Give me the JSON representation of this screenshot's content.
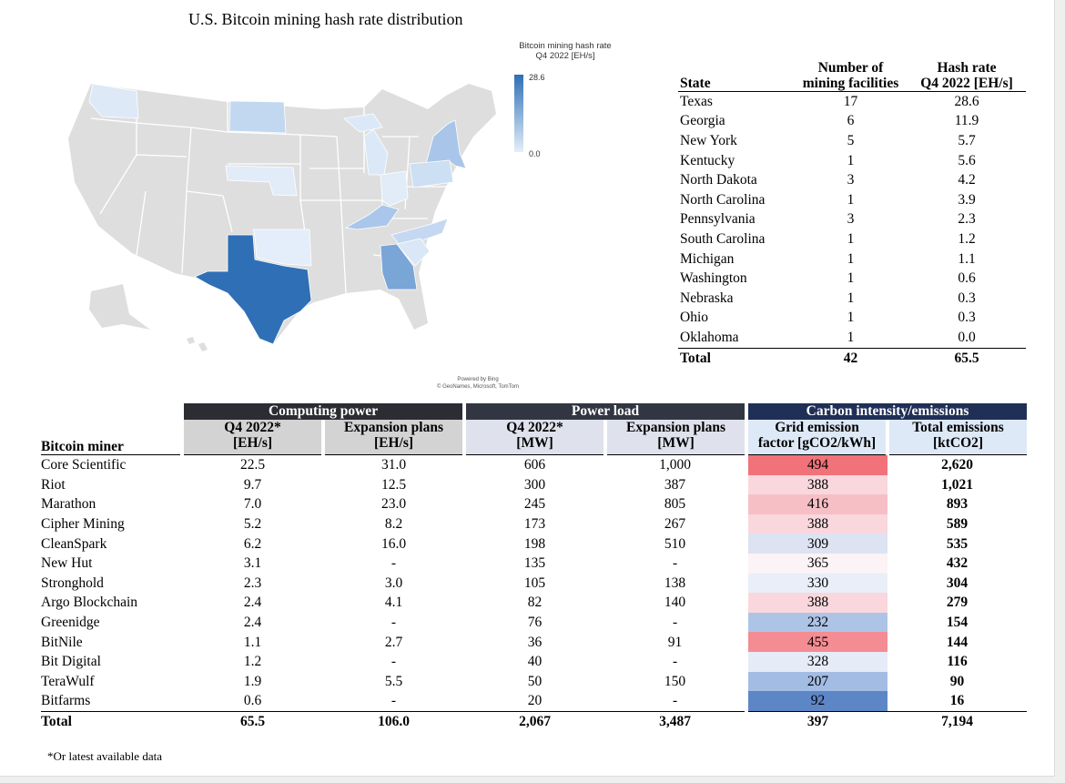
{
  "map": {
    "title": "U.S. Bitcoin mining hash rate distribution",
    "legend_title_line1": "Bitcoin mining hash rate",
    "legend_title_line2": "Q4 2022 [EH/s]",
    "legend_max": "28.6",
    "legend_min": "0.0",
    "credit_line1": "Powered by Bing",
    "credit_line2": "© GeoNames, Microsoft, TomTom",
    "colors": {
      "base": "#dedede",
      "low": "#e3eefa",
      "high": "#2f6fb6",
      "border": "#ffffff"
    },
    "highlighted_states": [
      "Texas",
      "Georgia",
      "New York",
      "Kentucky",
      "North Dakota",
      "North Carolina",
      "Pennsylvania",
      "South Carolina",
      "Michigan",
      "Washington",
      "Nebraska",
      "Ohio",
      "Oklahoma"
    ]
  },
  "state_table": {
    "headers": {
      "state": "State",
      "facilities_line1": "Number of",
      "facilities_line2": "mining facilities",
      "hash_line1": "Hash rate",
      "hash_line2": "Q4 2022 [EH/s]"
    },
    "rows": [
      {
        "state": "Texas",
        "facilities": "17",
        "hash": "28.6"
      },
      {
        "state": "Georgia",
        "facilities": "6",
        "hash": "11.9"
      },
      {
        "state": "New York",
        "facilities": "5",
        "hash": "5.7"
      },
      {
        "state": "Kentucky",
        "facilities": "1",
        "hash": "5.6"
      },
      {
        "state": "North Dakota",
        "facilities": "3",
        "hash": "4.2"
      },
      {
        "state": "North Carolina",
        "facilities": "1",
        "hash": "3.9"
      },
      {
        "state": "Pennsylvania",
        "facilities": "3",
        "hash": "2.3"
      },
      {
        "state": "South Carolina",
        "facilities": "1",
        "hash": "1.2"
      },
      {
        "state": "Michigan",
        "facilities": "1",
        "hash": "1.1"
      },
      {
        "state": "Washington",
        "facilities": "1",
        "hash": "0.6"
      },
      {
        "state": "Nebraska",
        "facilities": "1",
        "hash": "0.3"
      },
      {
        "state": "Ohio",
        "facilities": "1",
        "hash": "0.3"
      },
      {
        "state": "Oklahoma",
        "facilities": "1",
        "hash": "0.0"
      }
    ],
    "total": {
      "state": "Total",
      "facilities": "42",
      "hash": "65.5"
    }
  },
  "miner_table": {
    "groups": {
      "computing": "Computing power",
      "power": "Power load",
      "carbon": "Carbon intensity/emissions"
    },
    "headers": {
      "miner": "Bitcoin miner",
      "hash_q4_line1": "Q4 2022*",
      "hash_q4_line2": "[EH/s]",
      "hash_exp_line1": "Expansion plans",
      "hash_exp_line2": "[EH/s]",
      "power_q4_line1": "Q4 2022*",
      "power_q4_line2": "[MW]",
      "power_exp_line1": "Expansion plans",
      "power_exp_line2": "[MW]",
      "gef_line1": "Grid emission",
      "gef_line2": "factor [gCO2/kWh]",
      "emis_line1": "Total emissions",
      "emis_line2": "[ktCO2]"
    },
    "rows": [
      {
        "miner": "Core Scientific",
        "hash_q4": "22.5",
        "hash_exp": "31.0",
        "power_q4": "606",
        "power_exp": "1,000",
        "gef": "494",
        "gef_color": "#f2727a",
        "emis": "2,620"
      },
      {
        "miner": "Riot",
        "hash_q4": "9.7",
        "hash_exp": "12.5",
        "power_q4": "300",
        "power_exp": "387",
        "gef": "388",
        "gef_color": "#f9d7dd",
        "emis": "1,021"
      },
      {
        "miner": "Marathon",
        "hash_q4": "7.0",
        "hash_exp": "23.0",
        "power_q4": "245",
        "power_exp": "805",
        "gef": "416",
        "gef_color": "#f6bfc6",
        "emis": "893"
      },
      {
        "miner": "Cipher Mining",
        "hash_q4": "5.2",
        "hash_exp": "8.2",
        "power_q4": "173",
        "power_exp": "267",
        "gef": "388",
        "gef_color": "#f9d7dd",
        "emis": "589"
      },
      {
        "miner": "CleanSpark",
        "hash_q4": "6.2",
        "hash_exp": "16.0",
        "power_q4": "198",
        "power_exp": "510",
        "gef": "309",
        "gef_color": "#dde3f2",
        "emis": "535"
      },
      {
        "miner": "New Hut",
        "hash_q4": "3.1",
        "hash_exp": "-",
        "power_q4": "135",
        "power_exp": "-",
        "gef": "365",
        "gef_color": "#fbf3f5",
        "emis": "432"
      },
      {
        "miner": "Stronghold",
        "hash_q4": "2.3",
        "hash_exp": "3.0",
        "power_q4": "105",
        "power_exp": "138",
        "gef": "330",
        "gef_color": "#e9eef8",
        "emis": "304"
      },
      {
        "miner": "Argo Blockchain",
        "hash_q4": "2.4",
        "hash_exp": "4.1",
        "power_q4": "82",
        "power_exp": "140",
        "gef": "388",
        "gef_color": "#f9d7dd",
        "emis": "279"
      },
      {
        "miner": "Greenidge",
        "hash_q4": "2.4",
        "hash_exp": "-",
        "power_q4": "76",
        "power_exp": "-",
        "gef": "232",
        "gef_color": "#aec4e6",
        "emis": "154"
      },
      {
        "miner": "BitNile",
        "hash_q4": "1.1",
        "hash_exp": "2.7",
        "power_q4": "36",
        "power_exp": "91",
        "gef": "455",
        "gef_color": "#f48c93",
        "emis": "144"
      },
      {
        "miner": "Bit Digital",
        "hash_q4": "1.2",
        "hash_exp": "-",
        "power_q4": "40",
        "power_exp": "-",
        "gef": "328",
        "gef_color": "#e5ebf7",
        "emis": "116"
      },
      {
        "miner": "TeraWulf",
        "hash_q4": "1.9",
        "hash_exp": "5.5",
        "power_q4": "50",
        "power_exp": "150",
        "gef": "207",
        "gef_color": "#a3bce3",
        "emis": "90"
      },
      {
        "miner": "Bitfarms",
        "hash_q4": "0.6",
        "hash_exp": "-",
        "power_q4": "20",
        "power_exp": "-",
        "gef": "92",
        "gef_color": "#5d86c7",
        "emis": "16"
      }
    ],
    "total": {
      "miner": "Total",
      "hash_q4": "65.5",
      "hash_exp": "106.0",
      "power_q4": "2,067",
      "power_exp": "3,487",
      "gef": "397",
      "emis": "7,194"
    },
    "footnote": "*Or latest available data"
  }
}
